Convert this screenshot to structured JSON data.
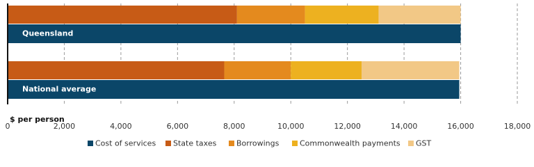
{
  "chart_data": {
    "type": "bar",
    "orientation": "horizontal",
    "categories": [
      "Queensland",
      "National average"
    ],
    "series": [
      {
        "name": "Cost of services",
        "color": "#0b4668",
        "values": [
          16000,
          15950
        ]
      },
      {
        "name": "State taxes",
        "color": "#c75b16",
        "values": [
          8100,
          7650
        ]
      },
      {
        "name": "Borrowings",
        "color": "#e48a1e",
        "values": [
          2400,
          2350
        ]
      },
      {
        "name": "Commonwealth payments",
        "color": "#edb120",
        "values": [
          2600,
          2500
        ]
      },
      {
        "name": "GST",
        "color": "#f2c886",
        "values": [
          2900,
          3450
        ]
      }
    ],
    "xlabel": "$ per person",
    "xlim": [
      0,
      18000
    ],
    "xticks": [
      0,
      {
        "value": 2000,
        "label": "2,000"
      },
      {
        "value": 4000,
        "label": "4,000"
      },
      {
        "value": 6000,
        "label": "6,000"
      },
      {
        "value": 8000,
        "label": "8,000"
      },
      {
        "value": 10000,
        "label": "10,000"
      },
      {
        "value": 12000,
        "label": "12,000"
      },
      {
        "value": 14000,
        "label": "14,000"
      },
      {
        "value": 16000,
        "label": "16,000"
      },
      {
        "value": 18000,
        "label": "18,000"
      }
    ],
    "grid": true,
    "legend": "bottom"
  }
}
